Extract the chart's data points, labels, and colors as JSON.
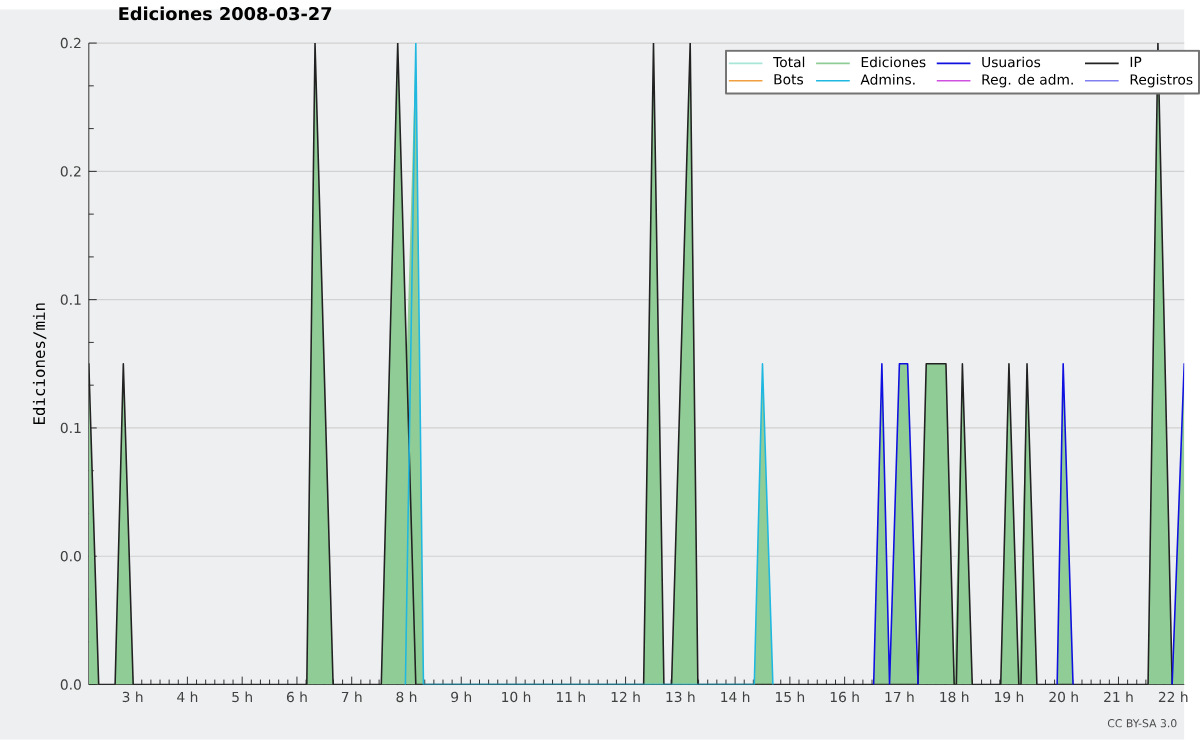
{
  "chart_data": {
    "type": "line",
    "title": "Ediciones  2008-03-27",
    "ylabel": "Ediciones/min",
    "annotations": [
      "CC BY-SA 3.0"
    ],
    "xlim": [
      2.2,
      22.2
    ],
    "xticks": [
      {
        "value": 3,
        "label": "3 h"
      },
      {
        "value": 4,
        "label": "4 h"
      },
      {
        "value": 5,
        "label": "5 h"
      },
      {
        "value": 6,
        "label": "6 h"
      },
      {
        "value": 7,
        "label": "7 h"
      },
      {
        "value": 8,
        "label": "8 h"
      },
      {
        "value": 9,
        "label": "9 h"
      },
      {
        "value": 10,
        "label": "10 h"
      },
      {
        "value": 11,
        "label": "11 h"
      },
      {
        "value": 12,
        "label": "12 h"
      },
      {
        "value": 13,
        "label": "13 h"
      },
      {
        "value": 14,
        "label": "14 h"
      },
      {
        "value": 15,
        "label": "15 h"
      },
      {
        "value": 16,
        "label": "16 h"
      },
      {
        "value": 17,
        "label": "17 h"
      },
      {
        "value": 18,
        "label": "18 h"
      },
      {
        "value": 19,
        "label": "19 h"
      },
      {
        "value": 20,
        "label": "20 h"
      },
      {
        "value": 21,
        "label": "21 h"
      },
      {
        "value": 22,
        "label": "22 h"
      }
    ],
    "ylim": [
      0,
      0.2
    ],
    "yticks": [
      {
        "value": 0,
        "label": "0.0"
      },
      {
        "value": 0.04,
        "label": "0.0"
      },
      {
        "value": 0.08,
        "label": "0.1"
      },
      {
        "value": 0.12,
        "label": "0.1"
      },
      {
        "value": 0.16,
        "label": "0.2"
      },
      {
        "value": 0.2,
        "label": "0.2"
      }
    ],
    "grid": "y",
    "legend": "top right",
    "marker": "none",
    "line_style": "solid",
    "series": [
      {
        "name": "Total",
        "color": "#a8e6d8"
      },
      {
        "name": "Ediciones",
        "type": "area",
        "color": "#90cc96",
        "x": [
          2.2,
          2.38,
          2.68,
          2.83,
          3.01,
          6.18,
          6.33,
          6.66,
          7.54,
          7.84,
          8.0,
          8.17,
          8.31,
          12.33,
          12.51,
          12.7,
          12.84,
          13.18,
          13.32,
          14.35,
          14.5,
          14.69,
          16.53,
          16.68,
          16.82,
          17.0,
          17.15,
          17.34,
          17.49,
          17.85,
          18.0,
          18.15,
          18.33,
          18.85,
          19.0,
          19.18,
          19.33,
          19.51,
          19.88,
          19.99,
          20.17,
          21.54,
          21.72,
          21.98,
          22.2
        ],
        "values": [
          0.1,
          0,
          0,
          0.1,
          0,
          0,
          0.2,
          0,
          0,
          0.2,
          0.1,
          0.2,
          0,
          0,
          0.2,
          0,
          0,
          0.2,
          0,
          0,
          0.1,
          0,
          0,
          0.1,
          0,
          0.1,
          0.1,
          0,
          0.1,
          0.1,
          0,
          0.1,
          0,
          0,
          0.1,
          0,
          0.1,
          0,
          0,
          0.1,
          0,
          0,
          0.2,
          0,
          0.1
        ]
      },
      {
        "name": "Usuarios",
        "color": "#1010e0",
        "x": [
          16.53,
          16.68,
          16.82,
          17.0,
          17.15,
          17.34,
          18.5,
          19.88,
          19.99,
          20.17,
          21,
          21.98,
          22.2
        ],
        "values": [
          0,
          0.1,
          0,
          0.1,
          0.1,
          0,
          null,
          0,
          0.1,
          0,
          null,
          0,
          0.1
        ]
      },
      {
        "name": "IP",
        "color": "#222222",
        "x": [
          2.2,
          2.38,
          2.68,
          2.83,
          3.01,
          6.18,
          6.33,
          6.66,
          7.54,
          7.84,
          8.17,
          12.33,
          12.51,
          12.7,
          12.84,
          13.18,
          13.32,
          17.34,
          17.49,
          17.85,
          18.0,
          18.04,
          18.15,
          18.33,
          18.85,
          19.0,
          19.18,
          19.22,
          19.33,
          19.51,
          21.54,
          21.72,
          21.98
        ],
        "values": [
          0.1,
          0,
          0,
          0.1,
          0,
          0,
          0.2,
          0,
          0,
          0.2,
          0,
          0,
          0.2,
          0,
          0,
          0.2,
          0,
          0,
          0.1,
          0.1,
          0,
          0,
          0.1,
          0,
          0,
          0.1,
          0,
          0,
          0.1,
          0,
          0,
          0.2,
          0
        ]
      },
      {
        "name": "Bots",
        "color": "#f0a040"
      },
      {
        "name": "Admins.",
        "color": "#20b8e0",
        "x": [
          7.98,
          8.17,
          8.31,
          14.35,
          14.5,
          14.69
        ],
        "values": [
          0,
          0.2,
          0,
          0,
          0.1,
          0
        ]
      },
      {
        "name": "Reg. de adm.",
        "color": "#d050e0"
      },
      {
        "name": "Registros",
        "color": "#8080f0"
      }
    ]
  }
}
